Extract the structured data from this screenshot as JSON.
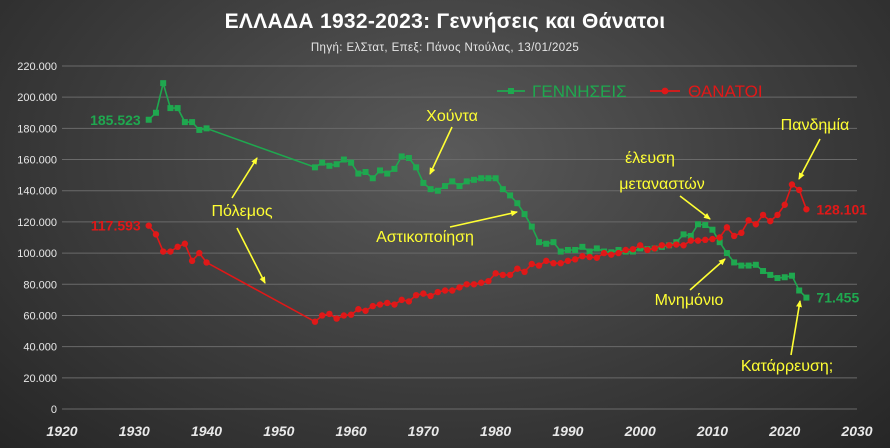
{
  "title": "ΕΛΛΑΔΑ 1932-2023: Γεννήσεις και Θάνατοι",
  "subtitle": "Πηγή: ΕλΣτατ, Επεξ: Πάνος Ντούλας, 13/01/2025",
  "colors": {
    "births": "#1fa84f",
    "deaths": "#e01818",
    "annotation": "#ffff33",
    "axis_text": "#e8e8e8",
    "grid": "#6a6a6a"
  },
  "chart_data": {
    "type": "line",
    "title": "ΕΛΛΑΔΑ 1932-2023: Γεννήσεις και Θάνατοι",
    "subtitle": "Πηγή: ΕλΣτατ, Επεξ: Πάνος Ντούλας, 13/01/2025",
    "xlim": [
      1920,
      2030
    ],
    "ylim": [
      0,
      220000
    ],
    "x_ticks": [
      1920,
      1930,
      1940,
      1950,
      1960,
      1970,
      1980,
      1990,
      2000,
      2010,
      2020,
      2030
    ],
    "x_tick_labels": [
      "1920",
      "1930",
      "1940",
      "1950",
      "1960",
      "1970",
      "1980",
      "1990",
      "2000",
      "2010",
      "2020",
      "2030"
    ],
    "y_ticks": [
      0,
      20000,
      40000,
      60000,
      80000,
      100000,
      120000,
      140000,
      160000,
      180000,
      200000,
      220000
    ],
    "y_tick_labels": [
      "0",
      "20.000",
      "40.000",
      "60.000",
      "80.000",
      "100.000",
      "120.000",
      "140.000",
      "160.000",
      "180.000",
      "200.000",
      "220.000"
    ],
    "grid": true,
    "legend_position": "top-right",
    "series": [
      {
        "name": "ΓΕΝΝΗΣΕΙΣ",
        "color": "#1fa84f",
        "marker": "square",
        "x": [
          1932,
          1933,
          1934,
          1935,
          1936,
          1937,
          1938,
          1939,
          1940,
          1955,
          1956,
          1957,
          1958,
          1959,
          1960,
          1961,
          1962,
          1963,
          1964,
          1965,
          1966,
          1967,
          1968,
          1969,
          1970,
          1971,
          1972,
          1973,
          1974,
          1975,
          1976,
          1977,
          1978,
          1979,
          1980,
          1981,
          1982,
          1983,
          1984,
          1985,
          1986,
          1987,
          1988,
          1989,
          1990,
          1991,
          1992,
          1993,
          1994,
          1995,
          1996,
          1997,
          1998,
          1999,
          2000,
          2001,
          2002,
          2003,
          2004,
          2005,
          2006,
          2007,
          2008,
          2009,
          2010,
          2011,
          2012,
          2013,
          2014,
          2015,
          2016,
          2017,
          2018,
          2019,
          2020,
          2021,
          2022,
          2023
        ],
        "y": [
          185523,
          190000,
          209000,
          193000,
          193000,
          184000,
          184000,
          179000,
          180000,
          155000,
          158000,
          156000,
          157000,
          160000,
          158000,
          151000,
          152000,
          148000,
          153000,
          151000,
          154000,
          162000,
          161000,
          155000,
          145000,
          141000,
          140000,
          143000,
          146000,
          143000,
          146000,
          147000,
          148000,
          148000,
          148000,
          141000,
          137000,
          132000,
          125000,
          117000,
          107000,
          106000,
          107000,
          101000,
          102000,
          102000,
          104000,
          101000,
          103000,
          101000,
          100500,
          102000,
          101000,
          101000,
          103000,
          102500,
          103000,
          104000,
          105000,
          107000,
          112000,
          111000,
          118500,
          118000,
          115000,
          107000,
          100000,
          94000,
          92000,
          92000,
          92500,
          88500,
          86000,
          84000,
          84500,
          85500,
          76000,
          71455
        ]
      },
      {
        "name": "ΘΑΝΑΤΟΙ",
        "color": "#e01818",
        "marker": "circle",
        "x": [
          1932,
          1933,
          1934,
          1935,
          1936,
          1937,
          1938,
          1939,
          1940,
          1955,
          1956,
          1957,
          1958,
          1959,
          1960,
          1961,
          1962,
          1963,
          1964,
          1965,
          1966,
          1967,
          1968,
          1969,
          1970,
          1971,
          1972,
          1973,
          1974,
          1975,
          1976,
          1977,
          1978,
          1979,
          1980,
          1981,
          1982,
          1983,
          1984,
          1985,
          1986,
          1987,
          1988,
          1989,
          1990,
          1991,
          1992,
          1993,
          1994,
          1995,
          1996,
          1997,
          1998,
          1999,
          2000,
          2001,
          2002,
          2003,
          2004,
          2005,
          2006,
          2007,
          2008,
          2009,
          2010,
          2011,
          2012,
          2013,
          2014,
          2015,
          2016,
          2017,
          2018,
          2019,
          2020,
          2021,
          2022,
          2023
        ],
        "y": [
          117593,
          112000,
          101000,
          101000,
          104000,
          106000,
          95000,
          100000,
          94000,
          56000,
          60000,
          61000,
          58000,
          60000,
          60500,
          64000,
          63000,
          66000,
          67000,
          68000,
          67000,
          70000,
          69000,
          73000,
          74000,
          72500,
          75000,
          76000,
          76000,
          78000,
          80000,
          80000,
          81000,
          82000,
          87000,
          86000,
          86000,
          90000,
          88000,
          93000,
          92000,
          95000,
          93500,
          93500,
          95000,
          96000,
          98000,
          97500,
          97000,
          100000,
          99000,
          100000,
          102000,
          102500,
          105000,
          102000,
          103000,
          105000,
          105000,
          105500,
          105000,
          108000,
          108000,
          108500,
          109000,
          110000,
          116500,
          111000,
          113000,
          121000,
          118500,
          124500,
          120500,
          124500,
          131000,
          144000,
          140500,
          128101
        ]
      }
    ],
    "point_labels": [
      {
        "series": "ΓΕΝΝΗΣΕΙΣ",
        "text": "185.523"
      },
      {
        "series": "ΓΕΝΝΗΣΕΙΣ",
        "text": "71.455"
      },
      {
        "series": "ΘΑΝΑΤΟΙ",
        "text": "117.593"
      },
      {
        "series": "ΘΑΝΑΤΟΙ",
        "text": "128.101"
      }
    ],
    "annotations": [
      "Πόλεμος",
      "Χούντα",
      "Αστικοποίηση",
      "έλευση",
      "μεταναστών",
      "Μνημόνιο",
      "Πανδημία",
      "Κατάρρευση;"
    ]
  }
}
